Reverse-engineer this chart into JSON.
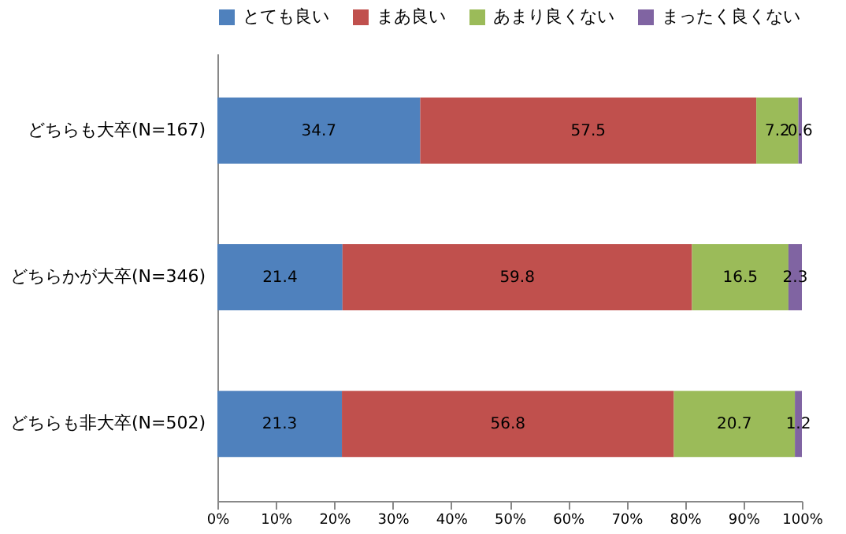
{
  "chart_data": {
    "type": "bar",
    "orientation": "horizontal",
    "stacked": true,
    "data_labels": true,
    "legend": "top",
    "grid": false,
    "categories": [
      "どちらも大卒(N=167)",
      "どちらかが大卒(N=346)",
      "どちらも非大卒(N=502)"
    ],
    "series": [
      {
        "name": "とても良い",
        "color": "#4f81bd",
        "values": [
          34.7,
          21.4,
          21.3
        ]
      },
      {
        "name": "まあ良い",
        "color": "#c0504d",
        "values": [
          57.5,
          59.8,
          56.8
        ]
      },
      {
        "name": "あまり良くない",
        "color": "#9bbb59",
        "values": [
          7.2,
          16.5,
          20.7
        ]
      },
      {
        "name": "まったく良くない",
        "color": "#8064a2",
        "values": [
          0.6,
          2.3,
          1.2
        ]
      }
    ],
    "xlim": [
      0,
      100
    ],
    "xticks": [
      {
        "value": 0,
        "label": "0%"
      },
      {
        "value": 10,
        "label": "10%"
      },
      {
        "value": 20,
        "label": "20%"
      },
      {
        "value": 30,
        "label": "30%"
      },
      {
        "value": 40,
        "label": "40%"
      },
      {
        "value": 50,
        "label": "50%"
      },
      {
        "value": 60,
        "label": "60%"
      },
      {
        "value": 70,
        "label": "70%"
      },
      {
        "value": 80,
        "label": "80%"
      },
      {
        "value": 90,
        "label": "90%"
      },
      {
        "value": 100,
        "label": "100%"
      }
    ]
  }
}
